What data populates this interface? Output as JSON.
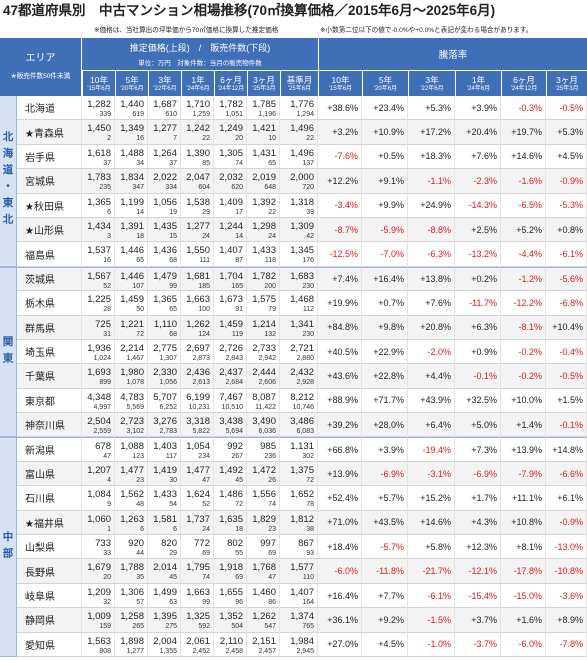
{
  "colors": {
    "header_blue": "#3f6fb6",
    "region_band": "#d5e2f3",
    "region_text": "#2b5ca6",
    "negative_red": "#e3191c"
  },
  "chart_data": {
    "type": "table",
    "title": "47都道府県別　中古マンション相場推移(70㎡換算価格／2015年6月～2025年6月)",
    "notes": [
      "※価格は、当社算出の坪単価から70㎡価格に換算した推定価格",
      "※小数第二位以下の値で-0.0%や+0.0%と表記が変わる場合があります。"
    ],
    "header": {
      "area_label": "エリア",
      "area_note": "★販売件数50件未満",
      "price_title": "推定価格(上段)　/　販売件数(下段)",
      "price_unit": "単位：万円　対象件数：当月の販売物件数",
      "rate_title": "騰落率",
      "price_columns": [
        {
          "period": "10年",
          "month": "'15年6月"
        },
        {
          "period": "5年",
          "month": "'20年6月"
        },
        {
          "period": "3年",
          "month": "'22年6月"
        },
        {
          "period": "1年",
          "month": "'24年6月"
        },
        {
          "period": "6ヶ月",
          "month": "'24年12月"
        },
        {
          "period": "3ヶ月",
          "month": "'25年3月"
        },
        {
          "period": "基準月",
          "month": "'25年6月"
        }
      ],
      "rate_columns": [
        {
          "period": "10年",
          "month": "'15年6月"
        },
        {
          "period": "5年",
          "month": "'20年6月"
        },
        {
          "period": "3年",
          "month": "'22年6月"
        },
        {
          "period": "1年",
          "month": "'24年6月"
        },
        {
          "period": "6ヶ月",
          "month": "'24年12月"
        },
        {
          "period": "3ヶ月",
          "month": "'25年3月"
        }
      ]
    },
    "regions": [
      {
        "name": "北海道・東北",
        "rows": [
          {
            "name": "北海道",
            "prices": [
              "1,282",
              "1,440",
              "1,687",
              "1,710",
              "1,782",
              "1,785",
              "1,776"
            ],
            "counts": [
              "339",
              "619",
              "610",
              "1,259",
              "1,051",
              "1,196",
              "1,294"
            ],
            "rates": [
              "+38.6%",
              "+23.4%",
              "+5.3%",
              "+3.9%",
              "-0.3%",
              "-0.5%"
            ]
          },
          {
            "name": "★青森県",
            "prices": [
              "1,450",
              "1,349",
              "1,277",
              "1,242",
              "1,249",
              "1,421",
              "1,496"
            ],
            "counts": [
              "2",
              "16",
              "7",
              "22",
              "20",
              "10",
              "22"
            ],
            "rates": [
              "+3.2%",
              "+10.9%",
              "+17.2%",
              "+20.4%",
              "+19.7%",
              "+5.3%"
            ]
          },
          {
            "name": "岩手県",
            "prices": [
              "1,618",
              "1,488",
              "1,264",
              "1,390",
              "1,305",
              "1,431",
              "1,496"
            ],
            "counts": [
              "37",
              "34",
              "37",
              "85",
              "74",
              "65",
              "137"
            ],
            "rates": [
              "-7.6%",
              "+0.5%",
              "+18.3%",
              "+7.6%",
              "+14.6%",
              "+4.5%"
            ]
          },
          {
            "name": "宮城県",
            "prices": [
              "1,783",
              "1,834",
              "2,022",
              "2,047",
              "2,032",
              "2,019",
              "2,000"
            ],
            "counts": [
              "235",
              "347",
              "334",
              "604",
              "620",
              "648",
              "720"
            ],
            "rates": [
              "+12.2%",
              "+9.1%",
              "-1.1%",
              "-2.3%",
              "-1.6%",
              "-0.9%"
            ]
          },
          {
            "name": "★秋田県",
            "prices": [
              "1,365",
              "1,199",
              "1,056",
              "1,538",
              "1,409",
              "1,392",
              "1,318"
            ],
            "counts": [
              "6",
              "14",
              "19",
              "29",
              "17",
              "22",
              "39"
            ],
            "rates": [
              "-3.4%",
              "+9.9%",
              "+24.9%",
              "-14.3%",
              "-6.5%",
              "-5.3%"
            ]
          },
          {
            "name": "★山形県",
            "prices": [
              "1,434",
              "1,391",
              "1,435",
              "1,277",
              "1,244",
              "1,298",
              "1,309"
            ],
            "counts": [
              "3",
              "18",
              "15",
              "24",
              "14",
              "24",
              "42"
            ],
            "rates": [
              "-8.7%",
              "-5.9%",
              "-8.8%",
              "+2.5%",
              "+5.2%",
              "+0.8%"
            ]
          },
          {
            "name": "福島県",
            "prices": [
              "1,537",
              "1,446",
              "1,436",
              "1,550",
              "1,407",
              "1,433",
              "1,345"
            ],
            "counts": [
              "16",
              "65",
              "68",
              "111",
              "87",
              "118",
              "176"
            ],
            "rates": [
              "-12.5%",
              "-7.0%",
              "-6.3%",
              "-13.2%",
              "-4.4%",
              "-6.1%"
            ]
          }
        ]
      },
      {
        "name": "関東",
        "rows": [
          {
            "name": "茨城県",
            "prices": [
              "1,567",
              "1,446",
              "1,479",
              "1,681",
              "1,704",
              "1,782",
              "1,683"
            ],
            "counts": [
              "52",
              "107",
              "99",
              "185",
              "165",
              "200",
              "230"
            ],
            "rates": [
              "+7.4%",
              "+16.4%",
              "+13.8%",
              "+0.2%",
              "-1.2%",
              "-5.6%"
            ]
          },
          {
            "name": "栃木県",
            "prices": [
              "1,225",
              "1,459",
              "1,365",
              "1,663",
              "1,673",
              "1,575",
              "1,468"
            ],
            "counts": [
              "28",
              "50",
              "65",
              "100",
              "91",
              "79",
              "112"
            ],
            "rates": [
              "+19.9%",
              "+0.7%",
              "+7.6%",
              "-11.7%",
              "-12.2%",
              "-6.8%"
            ]
          },
          {
            "name": "群馬県",
            "prices": [
              "725",
              "1,221",
              "1,110",
              "1,262",
              "1,459",
              "1,214",
              "1,341"
            ],
            "counts": [
              "31",
              "72",
              "68",
              "124",
              "119",
              "132",
              "230"
            ],
            "rates": [
              "+84.8%",
              "+9.8%",
              "+20.8%",
              "+6.3%",
              "-8.1%",
              "+10.4%"
            ]
          },
          {
            "name": "埼玉県",
            "prices": [
              "1,936",
              "2,214",
              "2,775",
              "2,697",
              "2,726",
              "2,733",
              "2,721"
            ],
            "counts": [
              "1,024",
              "1,467",
              "1,307",
              "2,873",
              "2,843",
              "2,942",
              "2,880"
            ],
            "rates": [
              "+40.5%",
              "+22.9%",
              "-2.0%",
              "+0.9%",
              "-0.2%",
              "-0.4%"
            ]
          },
          {
            "name": "千葉県",
            "prices": [
              "1,693",
              "1,980",
              "2,330",
              "2,436",
              "2,437",
              "2,444",
              "2,432"
            ],
            "counts": [
              "899",
              "1,078",
              "1,056",
              "2,613",
              "2,684",
              "2,606",
              "2,928"
            ],
            "rates": [
              "+43.6%",
              "+22.8%",
              "+4.4%",
              "-0.1%",
              "-0.2%",
              "-0.5%"
            ]
          },
          {
            "name": "東京都",
            "prices": [
              "4,348",
              "4,783",
              "5,707",
              "6,199",
              "7,467",
              "8,087",
              "8,212"
            ],
            "counts": [
              "4,997",
              "5,569",
              "6,252",
              "10,231",
              "10,510",
              "11,422",
              "10,746"
            ],
            "rates": [
              "+88.9%",
              "+71.7%",
              "+43.9%",
              "+32.5%",
              "+10.0%",
              "+1.5%"
            ]
          },
          {
            "name": "神奈川県",
            "prices": [
              "2,504",
              "2,723",
              "3,276",
              "3,318",
              "3,438",
              "3,490",
              "3,486"
            ],
            "counts": [
              "2,559",
              "3,102",
              "2,783",
              "5,822",
              "5,694",
              "6,036",
              "6,083"
            ],
            "rates": [
              "+39.2%",
              "+28.0%",
              "+6.4%",
              "+5.0%",
              "+1.4%",
              "-0.1%"
            ]
          }
        ]
      },
      {
        "name": "中部",
        "rows": [
          {
            "name": "新潟県",
            "prices": [
              "678",
              "1,088",
              "1,403",
              "1,054",
              "992",
              "985",
              "1,131"
            ],
            "counts": [
              "47",
              "123",
              "117",
              "234",
              "267",
              "236",
              "302"
            ],
            "rates": [
              "+66.8%",
              "+3.9%",
              "-19.4%",
              "+7.3%",
              "+13.9%",
              "+14.8%"
            ]
          },
          {
            "name": "富山県",
            "prices": [
              "1,207",
              "1,477",
              "1,419",
              "1,477",
              "1,492",
              "1,472",
              "1,375"
            ],
            "counts": [
              "4",
              "23",
              "30",
              "47",
              "45",
              "26",
              "72"
            ],
            "rates": [
              "+13.9%",
              "-6.9%",
              "-3.1%",
              "-6.9%",
              "-7.9%",
              "-6.6%"
            ]
          },
          {
            "name": "石川県",
            "prices": [
              "1,084",
              "1,562",
              "1,433",
              "1,624",
              "1,486",
              "1,556",
              "1,652"
            ],
            "counts": [
              "9",
              "48",
              "54",
              "52",
              "72",
              "74",
              "78"
            ],
            "rates": [
              "+52.4%",
              "+5.7%",
              "+15.2%",
              "+1.7%",
              "+11.1%",
              "+6.1%"
            ]
          },
          {
            "name": "★福井県",
            "prices": [
              "1,060",
              "1,263",
              "1,581",
              "1,737",
              "1,635",
              "1,829",
              "1,812"
            ],
            "counts": [
              "1",
              "6",
              "6",
              "24",
              "18",
              "23",
              "38"
            ],
            "rates": [
              "+71.0%",
              "+43.5%",
              "+14.6%",
              "+4.3%",
              "+10.8%",
              "-0.9%"
            ]
          },
          {
            "name": "山梨県",
            "prices": [
              "733",
              "920",
              "820",
              "772",
              "802",
              "997",
              "867"
            ],
            "counts": [
              "33",
              "44",
              "29",
              "69",
              "55",
              "69",
              "93"
            ],
            "rates": [
              "+18.4%",
              "-5.7%",
              "+5.8%",
              "+12.3%",
              "+8.1%",
              "-13.0%"
            ]
          },
          {
            "name": "長野県",
            "prices": [
              "1,679",
              "1,788",
              "2,014",
              "1,795",
              "1,918",
              "1,768",
              "1,577"
            ],
            "counts": [
              "20",
              "35",
              "45",
              "74",
              "69",
              "47",
              "110"
            ],
            "rates": [
              "-6.0%",
              "-11.8%",
              "-21.7%",
              "-12.1%",
              "-17.8%",
              "-10.8%"
            ]
          },
          {
            "name": "岐阜県",
            "prices": [
              "1,209",
              "1,306",
              "1,499",
              "1,663",
              "1,655",
              "1,460",
              "1,407"
            ],
            "counts": [
              "32",
              "57",
              "63",
              "99",
              "96",
              "86",
              "164"
            ],
            "rates": [
              "+16.4%",
              "+7.7%",
              "-6.1%",
              "-15.4%",
              "-15.0%",
              "-3.6%"
            ]
          },
          {
            "name": "静岡県",
            "prices": [
              "1,009",
              "1,258",
              "1,395",
              "1,325",
              "1,352",
              "1,262",
              "1,374"
            ],
            "counts": [
              "159",
              "265",
              "275",
              "592",
              "504",
              "547",
              "765"
            ],
            "rates": [
              "+36.1%",
              "+9.2%",
              "-1.5%",
              "+3.7%",
              "+1.6%",
              "+8.9%"
            ]
          },
          {
            "name": "愛知県",
            "prices": [
              "1,563",
              "1,898",
              "2,004",
              "2,061",
              "2,110",
              "2,151",
              "1,984"
            ],
            "counts": [
              "808",
              "1,277",
              "1,355",
              "2,452",
              "2,458",
              "2,457",
              "2,945"
            ],
            "rates": [
              "+27.0%",
              "+4.5%",
              "-1.0%",
              "-3.7%",
              "-6.0%",
              "-7.8%"
            ]
          }
        ]
      }
    ]
  }
}
